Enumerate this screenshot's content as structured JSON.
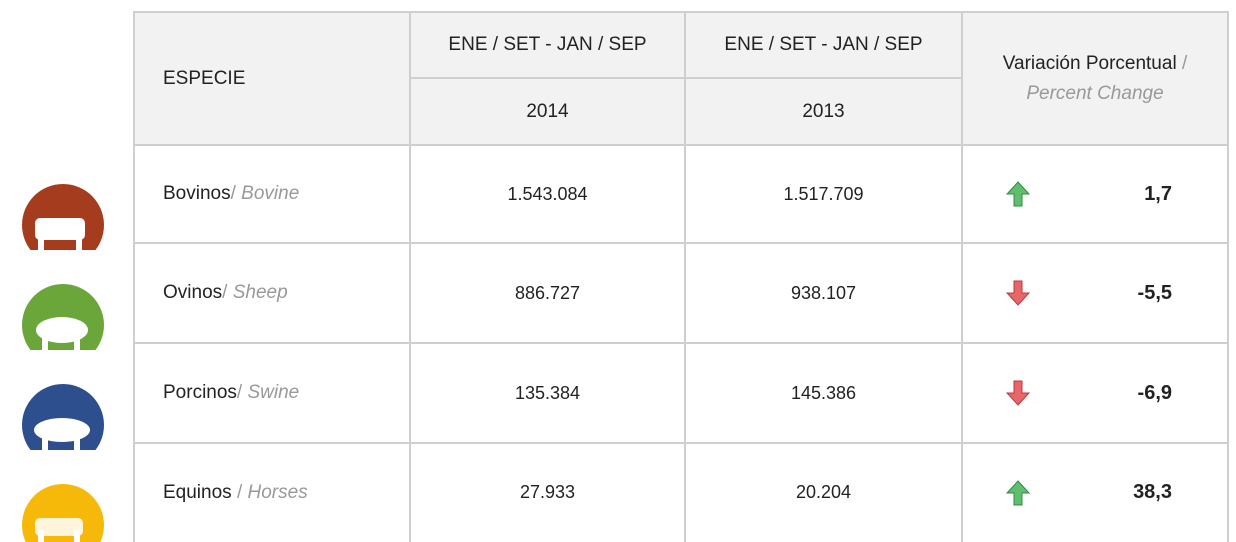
{
  "header": {
    "species": "ESPECIE",
    "period_a": "ENE / SET - JAN / SEP",
    "period_b": "ENE / SET - JAN / SEP",
    "change_es": "Variación Porcentual",
    "change_sep": "/",
    "change_en": "Percent Change",
    "year_a": "2014",
    "year_b": "2013"
  },
  "rows": [
    {
      "name_es": "Bovinos",
      "sep": "/",
      "name_en": "Bovine",
      "value_a": "1.543.084",
      "value_b": "1.517.709",
      "change": "1,7"
    },
    {
      "name_es": "Ovinos",
      "sep": "/",
      "name_en": "Sheep",
      "value_a": "886.727",
      "value_b": "938.107",
      "change": "-5,5"
    },
    {
      "name_es": "Porcinos",
      "sep": "/",
      "name_en": "Swine",
      "value_a": "135.384",
      "value_b": "145.386",
      "change": "-6,9"
    },
    {
      "name_es": "Equinos",
      "sep": " /",
      "name_en": "Horses",
      "value_a": "27.933",
      "value_b": "20.204",
      "change": "38,3"
    }
  ]
}
